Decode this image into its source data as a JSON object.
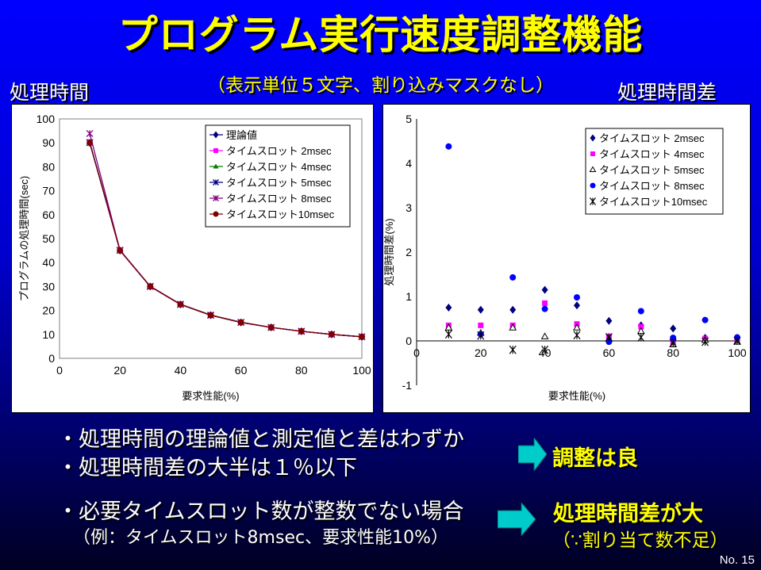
{
  "slide": {
    "title": "プログラム実行速度調整機能",
    "subtitle": "（表示単位５文字、割り込みマスクなし）",
    "left_heading": "処理時間",
    "right_heading": "処理時間差",
    "bullets": [
      "・処理時間の理論値と測定値と差はわずか",
      "・処理時間差の大半は１％以下",
      "・必要タイムスロット数が整数でない場合"
    ],
    "example": "（例：タイムスロット8msec、要求性能10%）",
    "result1": "調整は良",
    "result2": "処理時間差が大",
    "result2_note": "（∵割り当て数不足）",
    "page_number": "No. 15"
  },
  "colors": {
    "background_top": "#0000ff",
    "title": "#ffff00",
    "arrow": "#00cccc"
  },
  "chart_data": [
    {
      "type": "line",
      "xlabel": "要求性能(%)",
      "ylabel": "プログラムの処理時間(sec)",
      "xlim": [
        0,
        100
      ],
      "ylim": [
        0,
        100
      ],
      "x_ticks": [
        0,
        20,
        40,
        60,
        80,
        100
      ],
      "y_ticks": [
        0,
        10,
        20,
        30,
        40,
        50,
        60,
        70,
        80,
        90,
        100
      ],
      "legend_position": "top-right",
      "x": [
        10,
        20,
        30,
        40,
        50,
        60,
        70,
        80,
        90,
        100
      ],
      "series": [
        {
          "name": "理論値",
          "marker": "diamond",
          "color": "#000080",
          "values": [
            90,
            45,
            30,
            22.5,
            18,
            15,
            12.9,
            11.3,
            10,
            9
          ]
        },
        {
          "name": "タイムスロット 2msec",
          "marker": "square",
          "color": "#ff00ff",
          "values": [
            90.3,
            45.2,
            30.1,
            22.6,
            18.1,
            15.1,
            12.9,
            11.3,
            10,
            9
          ]
        },
        {
          "name": "タイムスロット 4msec",
          "marker": "triangle",
          "color": "#008000",
          "values": [
            90.3,
            45.1,
            30.1,
            22.6,
            18.1,
            15.1,
            12.9,
            11.3,
            10,
            9
          ]
        },
        {
          "name": "タイムスロット 5msec",
          "marker": "star",
          "color": "#000080",
          "values": [
            90.1,
            45.1,
            30,
            22.5,
            18,
            15,
            12.9,
            11.3,
            10,
            9
          ]
        },
        {
          "name": "タイムスロット 8msec",
          "marker": "star",
          "color": "#800080",
          "values": [
            93.9,
            45.2,
            30.1,
            22.6,
            18,
            15,
            12.9,
            11.3,
            10,
            9
          ]
        },
        {
          "name": "タイムスロット10msec",
          "marker": "circle",
          "color": "#800000",
          "values": [
            90,
            45,
            30,
            22.5,
            18,
            15,
            12.9,
            11.3,
            10,
            9
          ]
        }
      ]
    },
    {
      "type": "scatter",
      "xlabel": "要求性能(%)",
      "ylabel": "処理時間差(%)",
      "xlim": [
        0,
        100
      ],
      "ylim": [
        -1,
        5
      ],
      "x_ticks": [
        0,
        20,
        40,
        60,
        80,
        100
      ],
      "y_ticks": [
        -1,
        0,
        1,
        2,
        3,
        4,
        5
      ],
      "legend_position": "top-right",
      "x": [
        10,
        20,
        30,
        40,
        50,
        60,
        70,
        80,
        90,
        100
      ],
      "series": [
        {
          "name": "タイムスロット 2msec",
          "marker": "diamond",
          "color": "#000080",
          "values": [
            0.75,
            0.7,
            0.7,
            1.15,
            0.8,
            0.45,
            0.35,
            0.28,
            0.07,
            0.02
          ]
        },
        {
          "name": "タイムスロット 4msec",
          "marker": "square",
          "color": "#ff00ff",
          "values": [
            0.35,
            0.35,
            0.35,
            0.85,
            0.38,
            0.1,
            0.32,
            -0.03,
            0.05,
            0.02
          ]
        },
        {
          "name": "タイムスロット 5msec",
          "marker": "triangle-open",
          "color": "#000000",
          "values": [
            0.3,
            0.18,
            0.3,
            0.1,
            0.3,
            0.05,
            0.22,
            -0.08,
            0.02,
            -0.02
          ]
        },
        {
          "name": "タイムスロット 8msec",
          "marker": "circle",
          "color": "#0000ff",
          "values": [
            4.38,
            0.15,
            1.43,
            0.72,
            0.98,
            -0.02,
            0.67,
            0.07,
            0.47,
            0.08
          ]
        },
        {
          "name": "タイムスロット10msec",
          "marker": "asterisk",
          "color": "#000000",
          "values": [
            0.15,
            0.12,
            -0.2,
            -0.2,
            0.13,
            0.08,
            0.08,
            -0.05,
            -0.02,
            0.0
          ]
        }
      ]
    }
  ]
}
